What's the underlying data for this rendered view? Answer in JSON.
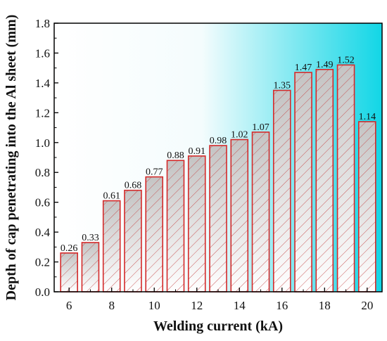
{
  "chart_data": {
    "type": "bar",
    "xlabel": "Welding current (kA)",
    "ylabel": "Depth of cap penetrating into the Al sheet (mm)",
    "x": [
      6,
      7,
      8,
      9,
      10,
      11,
      12,
      13,
      14,
      15,
      16,
      17,
      18,
      19,
      20
    ],
    "values": [
      0.26,
      0.33,
      0.61,
      0.68,
      0.77,
      0.88,
      0.91,
      0.98,
      1.02,
      1.07,
      1.35,
      1.47,
      1.49,
      1.52,
      1.14
    ],
    "data_labels": [
      "0.26",
      "0.33",
      "0.61",
      "0.68",
      "0.77",
      "0.88",
      "0.91",
      "0.98",
      "1.02",
      "1.07",
      "1.35",
      "1.47",
      "1.49",
      "1.52",
      "1.14"
    ],
    "xticks": [
      "6",
      "8",
      "10",
      "12",
      "14",
      "16",
      "18",
      "20"
    ],
    "xtick_values": [
      6,
      8,
      10,
      12,
      14,
      16,
      18,
      20
    ],
    "yticks": [
      "0.0",
      "0.2",
      "0.4",
      "0.6",
      "0.8",
      "1.0",
      "1.2",
      "1.4",
      "1.6",
      "1.8"
    ],
    "ytick_values": [
      0,
      0.2,
      0.4,
      0.6,
      0.8,
      1.0,
      1.2,
      1.4,
      1.6,
      1.8
    ],
    "xlim": [
      5.3,
      20.7
    ],
    "ylim": [
      0,
      1.8
    ],
    "grid": false,
    "legend": false,
    "colors": {
      "bar_edge": "#d42a2a",
      "bar_top": "#c9c9c9",
      "bar_bottom": "#ffffff",
      "hatch": "#c64a4a",
      "background_left": "#ffffff",
      "background_right": "#12d6e6",
      "axis": "#000000"
    }
  }
}
